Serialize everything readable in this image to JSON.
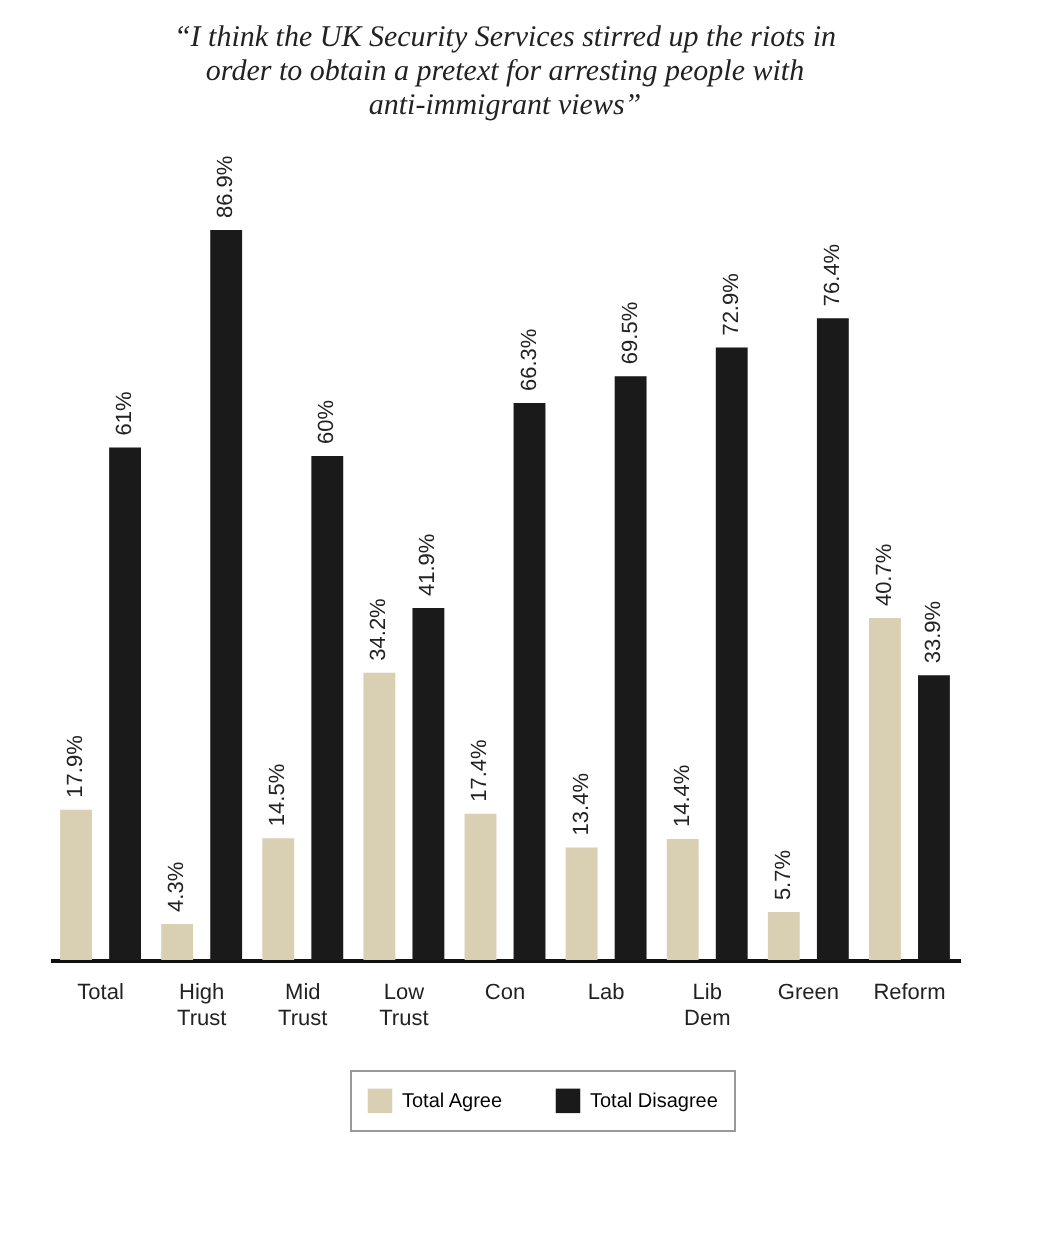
{
  "chart_data": {
    "type": "bar",
    "title": "“I think the UK Security Services stirred up the riots in order to obtain a pretext for arresting people with anti-immigrant views”",
    "categories": [
      "Total",
      "High Trust",
      "Mid Trust",
      "Low Trust",
      "Con",
      "Lab",
      "Lib Dem",
      "Green",
      "Reform"
    ],
    "series": [
      {
        "name": "Total Agree",
        "color": "#d9cfb2",
        "values": [
          17.9,
          4.3,
          14.5,
          34.2,
          17.4,
          13.4,
          14.4,
          5.7,
          40.7
        ],
        "value_labels": [
          "17.9%",
          "4.3%",
          "14.5%",
          "34.2%",
          "17.4%",
          "13.4%",
          "14.4%",
          "5.7%",
          "40.7%"
        ]
      },
      {
        "name": "Total Disagree",
        "color": "#1a1a1a",
        "values": [
          61,
          86.9,
          60,
          41.9,
          66.3,
          69.5,
          72.9,
          76.4,
          33.9
        ],
        "value_labels": [
          "61%",
          "86.9%",
          "60%",
          "41.9%",
          "66.3%",
          "69.5%",
          "72.9%",
          "76.4%",
          "33.9%"
        ]
      }
    ],
    "legend": "bottom",
    "tick_labels": "x"
  }
}
